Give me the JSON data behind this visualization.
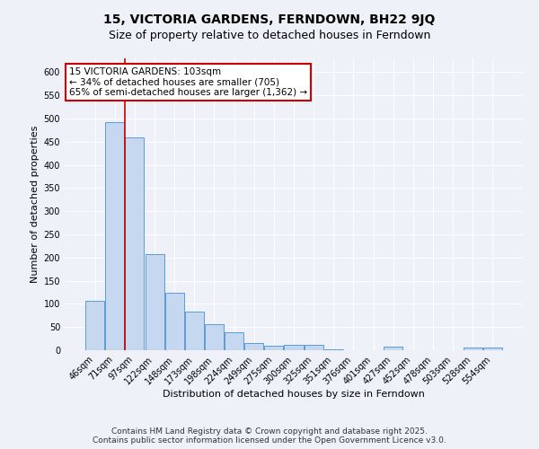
{
  "title": "15, VICTORIA GARDENS, FERNDOWN, BH22 9JQ",
  "subtitle": "Size of property relative to detached houses in Ferndown",
  "xlabel": "Distribution of detached houses by size in Ferndown",
  "ylabel": "Number of detached properties",
  "bar_labels": [
    "46sqm",
    "71sqm",
    "97sqm",
    "122sqm",
    "148sqm",
    "173sqm",
    "198sqm",
    "224sqm",
    "249sqm",
    "275sqm",
    "300sqm",
    "325sqm",
    "351sqm",
    "376sqm",
    "401sqm",
    "427sqm",
    "452sqm",
    "478sqm",
    "503sqm",
    "528sqm",
    "554sqm"
  ],
  "bar_values": [
    107,
    492,
    460,
    207,
    124,
    84,
    57,
    38,
    15,
    9,
    11,
    11,
    2,
    0,
    0,
    7,
    0,
    0,
    0,
    5,
    6
  ],
  "bar_color": "#c5d8f0",
  "bar_edge_color": "#5b9bd5",
  "red_line_x": 1.5,
  "annotation_text": "15 VICTORIA GARDENS: 103sqm\n← 34% of detached houses are smaller (705)\n65% of semi-detached houses are larger (1,362) →",
  "annotation_box_color": "#ffffff",
  "annotation_box_edge": "#cc0000",
  "ylim": [
    0,
    630
  ],
  "yticks": [
    0,
    50,
    100,
    150,
    200,
    250,
    300,
    350,
    400,
    450,
    500,
    550,
    600
  ],
  "background_color": "#eef2f8",
  "plot_background": "#eef2f8",
  "grid_color": "#ffffff",
  "footer": "Contains HM Land Registry data © Crown copyright and database right 2025.\nContains public sector information licensed under the Open Government Licence v3.0.",
  "title_fontsize": 10,
  "subtitle_fontsize": 9,
  "axis_label_fontsize": 8,
  "tick_fontsize": 7,
  "annotation_fontsize": 7.5,
  "footer_fontsize": 6.5
}
